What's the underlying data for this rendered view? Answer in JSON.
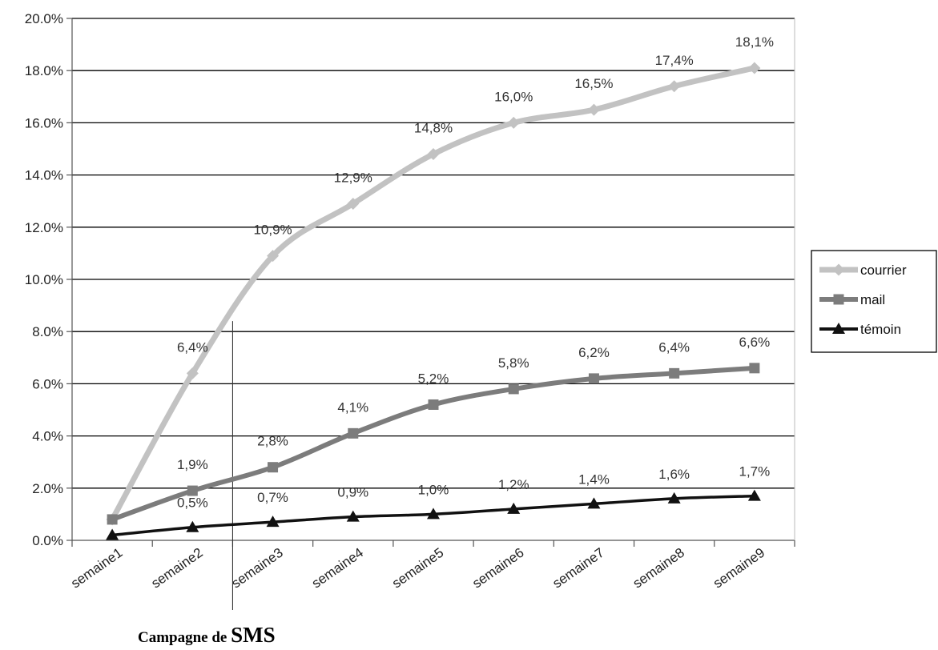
{
  "chart_data": {
    "type": "line",
    "categories": [
      "semaine1",
      "semaine2",
      "semaine3",
      "semaine4",
      "semaine5",
      "semaine6",
      "semaine7",
      "semaine8",
      "semaine9"
    ],
    "ylim": [
      0,
      20
    ],
    "yticks": [
      "0.0%",
      "2.0%",
      "4.0%",
      "6.0%",
      "8.0%",
      "10.0%",
      "12.0%",
      "14.0%",
      "16.0%",
      "18.0%",
      "20.0%"
    ],
    "grid": true,
    "legend_position": "right",
    "series": [
      {
        "name": "courrier",
        "color": "#c2c2c2",
        "marker": "diamond",
        "values": [
          0.8,
          6.4,
          10.9,
          12.9,
          14.8,
          16.0,
          16.5,
          17.4,
          18.1
        ],
        "labels": [
          "",
          "6,4%",
          "10,9%",
          "12,9%",
          "14,8%",
          "16,0%",
          "16,5%",
          "17,4%",
          "18,1%"
        ]
      },
      {
        "name": "mail",
        "color": "#7c7c7c",
        "marker": "square",
        "values": [
          0.8,
          1.9,
          2.8,
          4.1,
          5.2,
          5.8,
          6.2,
          6.4,
          6.6
        ],
        "labels": [
          "",
          "1,9%",
          "2,8%",
          "4,1%",
          "5,2%",
          "5,8%",
          "6,2%",
          "6,4%",
          "6,6%"
        ]
      },
      {
        "name": "témoin",
        "color": "#111111",
        "marker": "triangle",
        "values": [
          0.2,
          0.5,
          0.7,
          0.9,
          1.0,
          1.2,
          1.4,
          1.6,
          1.7
        ],
        "labels": [
          "",
          "0,5%",
          "0,7%",
          "0,9%",
          "1,0%",
          "1,2%",
          "1,4%",
          "1,6%",
          "1,7%"
        ]
      }
    ],
    "annotation": {
      "text_prefix": "Campagne de ",
      "text_emphasis": "SMS",
      "between": [
        "semaine2",
        "semaine3"
      ]
    }
  }
}
